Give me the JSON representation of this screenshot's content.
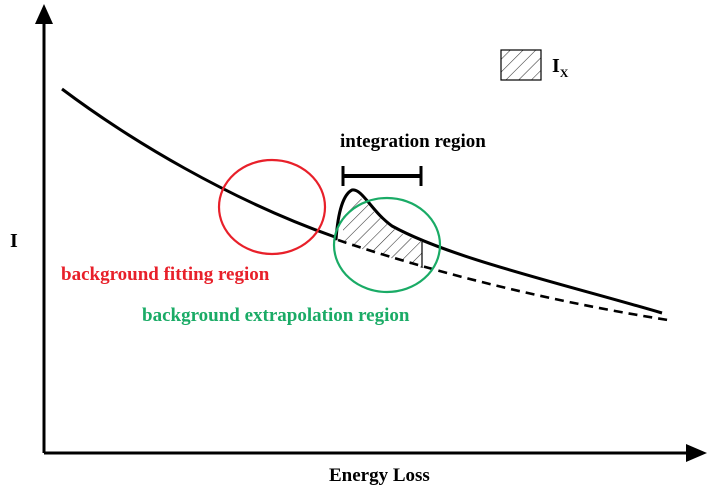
{
  "diagram": {
    "axis_y_label": "I",
    "axis_x_label": "Energy Loss",
    "legend": {
      "symbol": "I",
      "subscript": "X"
    },
    "integration_label": "integration region",
    "fitting_label": "background fitting region",
    "extrapolation_label": "background extrapolation region",
    "colors": {
      "ink": "#000000",
      "fitting": "#e8202a",
      "extrapolation": "#1aab66",
      "hatch": "#333333"
    }
  }
}
